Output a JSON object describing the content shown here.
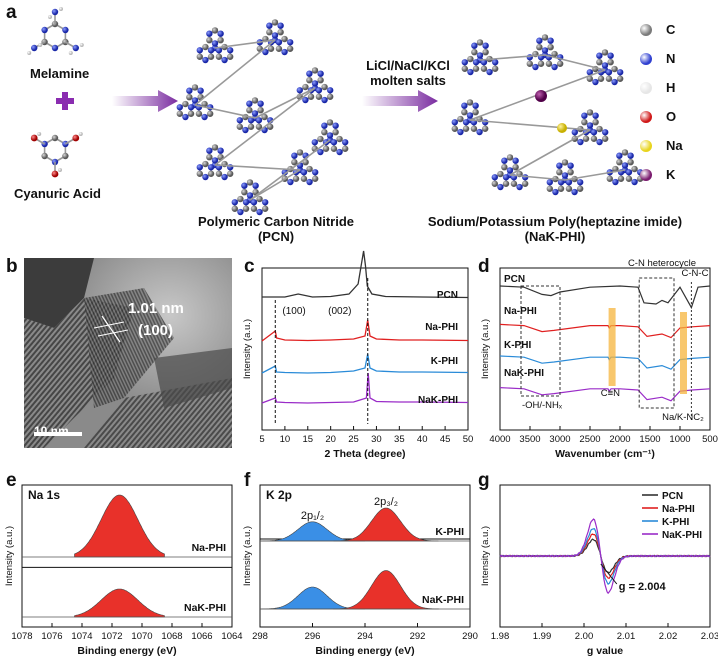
{
  "panel_a": {
    "label": "a",
    "melamine": "Melamine",
    "plus": "+",
    "cyanuric_acid": "Cyanuric Acid",
    "pcn_name_line1": "Polymeric Carbon Nitride",
    "pcn_name_line2": "(PCN)",
    "salt_line1": "LiCl/NaCl/KCl",
    "salt_line2": "molten salts",
    "phi_name_line1": "Sodium/Potassium Poly(heptazine imide)",
    "phi_name_line2": "(NaK-PHI)",
    "legend": [
      {
        "label": "C",
        "color": "#7a7a7a"
      },
      {
        "label": "N",
        "color": "#2f3fd0"
      },
      {
        "label": "H",
        "color": "#e6e6e6"
      },
      {
        "label": "O",
        "color": "#d01818"
      },
      {
        "label": "Na",
        "color": "#e8d41c"
      },
      {
        "label": "K",
        "color": "#7a1a6e"
      }
    ]
  },
  "panel_b": {
    "label": "b",
    "spacing": "1.01 nm",
    "plane": "(100)",
    "scale": "10 nm"
  },
  "panel_c": {
    "label": "c",
    "xlabel": "2 Theta (degree)",
    "ylabel": "Intensity (a.u.)",
    "ann_100": "(100)",
    "ann_002": "(002)",
    "xticks": [
      "5",
      "10",
      "15",
      "20",
      "25",
      "30",
      "35",
      "40",
      "45",
      "50"
    ]
  },
  "panel_d": {
    "label": "d",
    "xlabel": "Wavenumber (cm⁻¹)",
    "ylabel": "Intensity (a.u.)",
    "ann_heterocycle": "C-N heterocycle",
    "ann_cnc": "C-N-C",
    "ann_cn": "C≡N",
    "ann_oh": "-OH/-NHₓ",
    "ann_nak": "Na/K-NC₂",
    "xticks": [
      "4000",
      "3500",
      "3000",
      "2500",
      "2000",
      "1500",
      "1000",
      "500"
    ]
  },
  "panel_e": {
    "label": "e",
    "title": "Na 1s",
    "xlabel": "Binding energy (eV)",
    "ylabel": "Intensity (a.u.)",
    "xticks": [
      "1078",
      "1076",
      "1074",
      "1072",
      "1070",
      "1068",
      "1066",
      "1064"
    ]
  },
  "panel_f": {
    "label": "f",
    "title": "K 2p",
    "xlabel": "Binding energy (eV)",
    "ylabel": "Intensity (a.u.)",
    "peak1": "2p₁/₂",
    "peak2": "2p₃/₂",
    "xticks": [
      "298",
      "296",
      "294",
      "292",
      "290"
    ]
  },
  "panel_g": {
    "label": "g",
    "xlabel": "g value",
    "ylabel": "Intensity (a.u.)",
    "gval": "g = 2.004",
    "xticks": [
      "1.98",
      "1.99",
      "2.00",
      "2.01",
      "2.02",
      "2.03"
    ]
  },
  "chart_data": [
    {
      "type": "line",
      "panel": "c",
      "xlabel": "2 Theta (degree)",
      "ylabel": "Intensity (a.u.)",
      "xlim": [
        5,
        50
      ],
      "series": [
        {
          "name": "PCN",
          "color": "#333333",
          "x": [
            5,
            10,
            12.9,
            16,
            20,
            24,
            26,
            27.2,
            27.6,
            28,
            29,
            32,
            40,
            50
          ],
          "y": [
            0.9,
            0.9,
            1.2,
            0.9,
            0.95,
            1.2,
            2.2,
            5.5,
            4.0,
            2.0,
            1.2,
            0.95,
            0.9,
            0.85
          ]
        },
        {
          "name": "Na-PHI",
          "color": "#e02020",
          "x": [
            5,
            7.9,
            8.2,
            10,
            15,
            20,
            25,
            27.5,
            28.1,
            28.6,
            30,
            35,
            40,
            50
          ],
          "y": [
            0.5,
            1.5,
            0.8,
            0.6,
            0.55,
            0.6,
            0.7,
            1.0,
            2.6,
            1.0,
            0.7,
            0.6,
            0.6,
            0.55
          ]
        },
        {
          "name": "K-PHI",
          "color": "#2a8bd8",
          "x": [
            5,
            7.9,
            8.2,
            10,
            15,
            20,
            25,
            27.5,
            28.1,
            28.6,
            30,
            35,
            40,
            50
          ],
          "y": [
            0.5,
            1.2,
            0.6,
            0.55,
            0.5,
            0.55,
            0.7,
            1.0,
            2.4,
            1.0,
            0.7,
            0.6,
            0.6,
            0.55
          ]
        },
        {
          "name": "NaK-PHI",
          "color": "#9a2cc8",
          "x": [
            5,
            7.9,
            8.2,
            10,
            15,
            20,
            25,
            27.8,
            28.2,
            28.6,
            30,
            35,
            40,
            50
          ],
          "y": [
            0.5,
            1.0,
            0.6,
            0.55,
            0.5,
            0.55,
            0.6,
            1.0,
            3.5,
            1.0,
            0.65,
            0.6,
            0.6,
            0.55
          ]
        }
      ]
    },
    {
      "type": "line",
      "panel": "d",
      "xlabel": "Wavenumber (cm⁻¹)",
      "ylabel": "Intensity (a.u.)",
      "xlim": [
        4000,
        500
      ],
      "series": [
        {
          "name": "PCN",
          "color": "#333333",
          "x": [
            4000,
            3600,
            3300,
            3150,
            3000,
            2500,
            2000,
            1700,
            1600,
            1400,
            1300,
            1200,
            1000,
            810,
            700,
            500
          ],
          "y": [
            3.0,
            2.9,
            2.3,
            2.2,
            2.5,
            2.9,
            3.0,
            2.9,
            1.6,
            1.5,
            1.8,
            1.6,
            2.9,
            1.2,
            2.9,
            3.0
          ]
        },
        {
          "name": "Na-PHI",
          "color": "#e02020",
          "x": [
            4000,
            3600,
            3300,
            3100,
            2500,
            2200,
            2180,
            2150,
            2000,
            1700,
            1550,
            1300,
            1150,
            1000,
            800,
            500
          ],
          "y": [
            2.8,
            2.7,
            2.2,
            2.3,
            2.7,
            2.7,
            2.5,
            2.7,
            2.7,
            2.6,
            1.8,
            2.0,
            1.7,
            2.5,
            2.6,
            2.7
          ]
        },
        {
          "name": "K-PHI",
          "color": "#2a8bd8",
          "x": [
            4000,
            3600,
            3300,
            3100,
            2500,
            2200,
            2180,
            2150,
            2000,
            1700,
            1550,
            1300,
            1150,
            1000,
            800,
            500
          ],
          "y": [
            2.5,
            2.4,
            1.9,
            2.0,
            2.4,
            2.4,
            2.2,
            2.4,
            2.4,
            2.3,
            1.5,
            1.7,
            1.4,
            2.2,
            2.3,
            2.4
          ]
        },
        {
          "name": "NaK-PHI",
          "color": "#9a2cc8",
          "x": [
            4000,
            3600,
            3300,
            3100,
            2500,
            2200,
            2180,
            2150,
            2000,
            1700,
            1550,
            1300,
            1150,
            1000,
            800,
            500
          ],
          "y": [
            2.2,
            2.1,
            1.6,
            1.7,
            2.1,
            2.1,
            1.9,
            2.1,
            2.1,
            2.0,
            1.2,
            1.4,
            1.1,
            1.9,
            2.0,
            2.1
          ]
        }
      ]
    },
    {
      "type": "area",
      "panel": "e",
      "xlabel": "Binding energy (eV)",
      "xlim": [
        1078,
        1064
      ],
      "series": [
        {
          "name": "Na-PHI",
          "center": 1071.5,
          "fwhm": 1.8,
          "height": 1.0,
          "color": "#e8312a"
        },
        {
          "name": "NaK-PHI",
          "center": 1071.5,
          "fwhm": 1.8,
          "height": 0.45,
          "color": "#e8312a"
        }
      ]
    },
    {
      "type": "area",
      "panel": "f",
      "xlabel": "Binding energy (eV)",
      "xlim": [
        298,
        290
      ],
      "series": [
        {
          "name": "K-PHI",
          "peaks": [
            {
              "center": 296.0,
              "height": 0.35,
              "color": "#3a8fe6"
            },
            {
              "center": 293.2,
              "height": 0.6,
              "color": "#e8312a"
            }
          ]
        },
        {
          "name": "NaK-PHI",
          "peaks": [
            {
              "center": 296.0,
              "height": 0.4,
              "color": "#3a8fe6"
            },
            {
              "center": 293.2,
              "height": 0.7,
              "color": "#e8312a"
            }
          ]
        }
      ]
    },
    {
      "type": "line",
      "panel": "g",
      "xlabel": "g value",
      "ylabel": "Intensity (a.u.)",
      "xlim": [
        1.98,
        2.03
      ],
      "series": [
        {
          "name": "PCN",
          "color": "#333333",
          "amp": 0.45
        },
        {
          "name": "Na-PHI",
          "color": "#e02020",
          "amp": 0.6
        },
        {
          "name": "K-PHI",
          "color": "#2a8bd8",
          "amp": 0.75
        },
        {
          "name": "NaK-PHI",
          "color": "#9a2cc8",
          "amp": 1.0
        }
      ]
    }
  ]
}
